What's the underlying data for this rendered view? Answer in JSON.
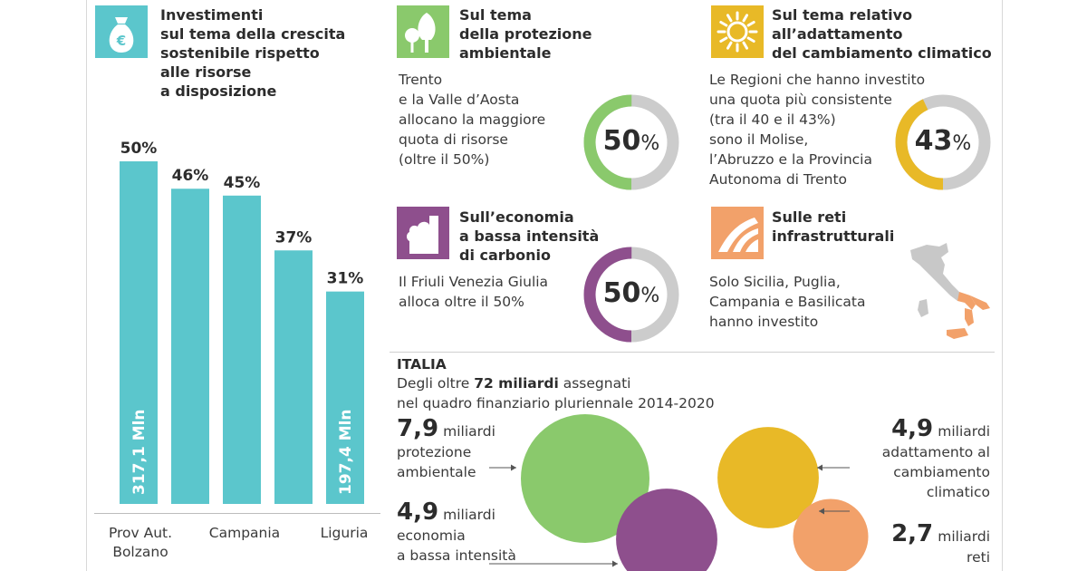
{
  "colors": {
    "teal": "#5bc6cc",
    "green": "#8ac96c",
    "purple": "#8e4f8d",
    "yellow": "#e8b927",
    "orange": "#f2a16a",
    "grey": "#cccccc"
  },
  "left": {
    "icon": "money-bag-icon",
    "title_lines": [
      "Investimenti",
      "sul tema della crescita",
      "sostenibile rispetto",
      "alle risorse",
      "a disposizione"
    ]
  },
  "chart_data": [
    {
      "type": "bar",
      "categories": [
        "Prov Aut. Bolzano",
        "",
        "Campania",
        "",
        "Liguria"
      ],
      "values": [
        50,
        46,
        45,
        37,
        31
      ],
      "data_labels": [
        "50%",
        "46%",
        "45%",
        "37%",
        "31%"
      ],
      "inner_labels": [
        "317,1 Mln",
        "",
        "",
        "",
        "197,4 Mln"
      ],
      "ylim": [
        0,
        50
      ]
    },
    {
      "type": "pie",
      "series": [
        {
          "values": [
            50,
            50
          ]
        }
      ],
      "center_label": "50%"
    },
    {
      "type": "pie",
      "series": [
        {
          "values": [
            43,
            57
          ]
        }
      ],
      "center_label": "43%"
    },
    {
      "type": "pie",
      "series": [
        {
          "values": [
            50,
            50
          ]
        }
      ],
      "center_label": "50%"
    },
    {
      "type": "scatter",
      "note_values": {
        "protezione": 7.9,
        "economia": 4.9,
        "adattamento": 4.9,
        "reti": 2.7
      }
    }
  ],
  "cards": {
    "env": {
      "title_lines": [
        "Sul tema",
        "della protezione",
        "ambientale"
      ],
      "body_lines": [
        "Trento",
        "e la Valle d’Aosta",
        "allocano la maggiore",
        "quota di  risorse",
        "(oltre il 50%)"
      ],
      "donut_num": "50",
      "donut_pct": "%",
      "icon": "trees-icon"
    },
    "clim": {
      "title_lines": [
        "Sul tema relativo",
        "all’adattamento",
        "del cambiamento climatico"
      ],
      "body_lines": [
        "Le Regioni che hanno investito",
        "una quota più consistente",
        "(tra il 40 e il 43%)",
        "sono il Molise,",
        "l’Abruzzo e la Provincia",
        "Autonoma di Trento"
      ],
      "donut_num": "43",
      "donut_pct": "%",
      "icon": "sun-icon"
    },
    "eco": {
      "title_lines": [
        "Sull’economia",
        "a bassa intensità",
        "di carbonio"
      ],
      "body_lines": [
        "Il Friuli Venezia Giulia",
        "alloca oltre il 50%"
      ],
      "donut_num": "50",
      "donut_pct": "%",
      "icon": "smoke-icon"
    },
    "reti": {
      "title_lines": [
        "Sulle reti",
        "infrastrutturali"
      ],
      "body_lines": [
        "Solo Sicilia, Puglia,",
        "Campania e Basilicata",
        "hanno investito"
      ],
      "icon": "road-icon"
    }
  },
  "italia": {
    "heading": "ITALIA",
    "line1_pre": "Degli oltre ",
    "line1_bold": "72 miliardi",
    "line1_post": " assegnati",
    "line2": "nel quadro finanziario pluriennale 2014-2020",
    "items": {
      "protezione": {
        "value": "7,9",
        "unit": "miliardi",
        "label_lines": [
          "protezione",
          "ambientale"
        ]
      },
      "economia": {
        "value": "4,9",
        "unit": "miliardi",
        "label_lines": [
          "economia",
          "a bassa intensità"
        ]
      },
      "adattamento": {
        "value": "4,9",
        "unit": "miliardi",
        "label_lines": [
          "adattamento al",
          "cambiamento",
          "climatico"
        ]
      },
      "reti": {
        "value": "2,7",
        "unit": "miliardi",
        "label_lines": [
          "reti"
        ]
      }
    }
  }
}
